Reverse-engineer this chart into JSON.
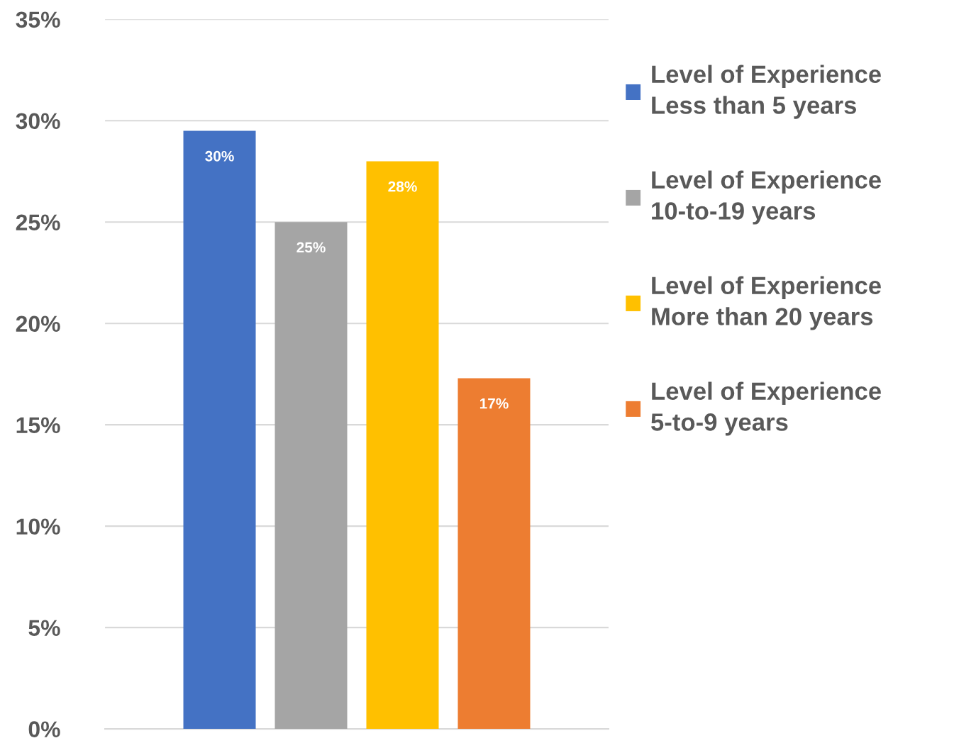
{
  "chart_data": {
    "type": "bar",
    "categories": [
      null
    ],
    "series": [
      {
        "name": "Level of Experience\nLess than 5 years",
        "color": "#4472c4",
        "values": [
          29.5
        ],
        "value_labels": [
          "30%"
        ]
      },
      {
        "name": "Level of Experience\n10-to-19 years",
        "color": "#a5a5a5",
        "values": [
          25.0
        ],
        "value_labels": [
          "25%"
        ]
      },
      {
        "name": "Level of Experience\nMore than 20 years",
        "color": "#ffc000",
        "values": [
          28.0
        ],
        "value_labels": [
          "28%"
        ]
      },
      {
        "name": "Level of Experience\n5-to-9 years",
        "color": "#ed7d31",
        "values": [
          17.3
        ],
        "value_labels": [
          "17%"
        ]
      }
    ],
    "ylim": [
      0,
      35
    ],
    "yticks": [
      {
        "value": 0,
        "label": "0%"
      },
      {
        "value": 5,
        "label": "5%"
      },
      {
        "value": 10,
        "label": "10%"
      },
      {
        "value": 15,
        "label": "15%"
      },
      {
        "value": 20,
        "label": "20%"
      },
      {
        "value": 25,
        "label": "25%"
      },
      {
        "value": 30,
        "label": "30%"
      },
      {
        "value": 35,
        "label": "35%"
      }
    ],
    "grid": "y",
    "legend": "right"
  }
}
